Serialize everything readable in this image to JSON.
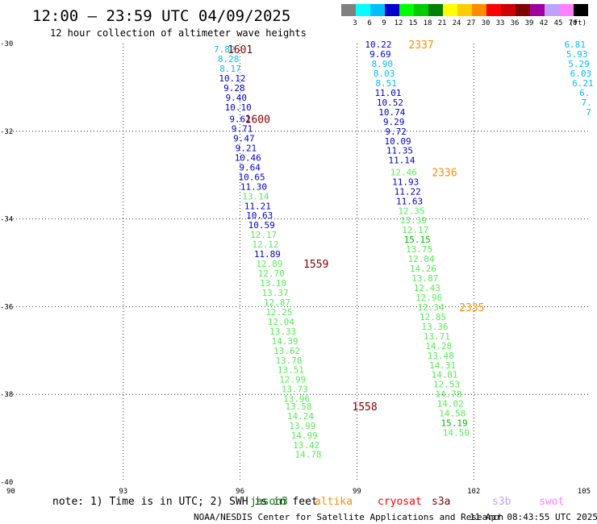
{
  "header": {
    "title": "12:00 — 23:59 UTC 04/09/2025",
    "subtitle": "12 hour collection of altimeter wave heights"
  },
  "legend": {
    "unit": "(ft)",
    "swatches": [
      {
        "label": "3",
        "color": "#808080"
      },
      {
        "label": "6",
        "color": "#00ffff"
      },
      {
        "label": "9",
        "color": "#00bfff"
      },
      {
        "label": "12",
        "color": "#0000cc"
      },
      {
        "label": "15",
        "color": "#00ff00"
      },
      {
        "label": "18",
        "color": "#00cc00"
      },
      {
        "label": "21",
        "color": "#008000"
      },
      {
        "label": "24",
        "color": "#ffff00"
      },
      {
        "label": "27",
        "color": "#ffcc00"
      },
      {
        "label": "30",
        "color": "#ff8c00"
      },
      {
        "label": "33",
        "color": "#ff0000"
      },
      {
        "label": "36",
        "color": "#cc0000"
      },
      {
        "label": "39",
        "color": "#800000"
      },
      {
        "label": "42",
        "color": "#a000a0"
      },
      {
        "label": "45",
        "color": "#c0a0ff"
      },
      {
        "label": "70",
        "color": "#ff80ff"
      },
      {
        "label": "",
        "color": "#000000"
      }
    ]
  },
  "axes": {
    "lon_ticks": [
      "90",
      "93",
      "96",
      "99",
      "102",
      "105"
    ],
    "lat_ticks": [
      "-30",
      "-32",
      "-34",
      "-36",
      "-38",
      "-40"
    ],
    "lon_range": [
      90,
      105
    ],
    "lat_range": [
      -30,
      -40
    ]
  },
  "colors": {
    "c6": "#00bfff",
    "c9": "#0000cc",
    "c12": "#55ee55",
    "c15": "#00bb00",
    "time_altika": "#ff8c00",
    "time_s3a": "#800000"
  },
  "tracks": [
    {
      "points": [
        {
          "lon": 95.6,
          "lat": -30.13,
          "v": "7.82",
          "c": "c6"
        },
        {
          "lon": 95.7,
          "lat": -30.35,
          "v": "8.28",
          "c": "c6"
        },
        {
          "lon": 95.75,
          "lat": -30.57,
          "v": "8.17",
          "c": "c6"
        },
        {
          "lon": 95.8,
          "lat": -30.79,
          "v": "10.12",
          "c": "c9"
        },
        {
          "lon": 95.85,
          "lat": -31.01,
          "v": "9.28",
          "c": "c9"
        },
        {
          "lon": 95.9,
          "lat": -31.23,
          "v": "9.40",
          "c": "c9"
        },
        {
          "lon": 95.95,
          "lat": -31.45,
          "v": "10.10",
          "c": "c9"
        },
        {
          "lon": 96.0,
          "lat": -31.72,
          "v": "9.62",
          "c": "c9"
        },
        {
          "lon": 96.05,
          "lat": -31.94,
          "v": "9.71",
          "c": "c9"
        },
        {
          "lon": 96.1,
          "lat": -32.16,
          "v": "9.47",
          "c": "c9"
        },
        {
          "lon": 96.15,
          "lat": -32.38,
          "v": "9.21",
          "c": "c9"
        },
        {
          "lon": 96.2,
          "lat": -32.6,
          "v": "10.46",
          "c": "c9"
        },
        {
          "lon": 96.25,
          "lat": -32.82,
          "v": "9.64",
          "c": "c9"
        },
        {
          "lon": 96.3,
          "lat": -33.04,
          "v": "10.65",
          "c": "c9"
        },
        {
          "lon": 96.35,
          "lat": -33.26,
          "v": "11.30",
          "c": "c9"
        },
        {
          "lon": 96.4,
          "lat": -33.48,
          "v": "13.14",
          "c": "c12"
        },
        {
          "lon": 96.45,
          "lat": -33.7,
          "v": "11.21",
          "c": "c9"
        },
        {
          "lon": 96.5,
          "lat": -33.92,
          "v": "10.63",
          "c": "c9"
        },
        {
          "lon": 96.55,
          "lat": -34.14,
          "v": "10.59",
          "c": "c9"
        },
        {
          "lon": 96.6,
          "lat": -34.36,
          "v": "12.17",
          "c": "c12"
        },
        {
          "lon": 96.65,
          "lat": -34.58,
          "v": "12.12",
          "c": "c12"
        },
        {
          "lon": 96.7,
          "lat": -34.8,
          "v": "11.89",
          "c": "c9"
        },
        {
          "lon": 96.75,
          "lat": -35.02,
          "v": "12.89",
          "c": "c12"
        },
        {
          "lon": 96.8,
          "lat": -35.24,
          "v": "12.70",
          "c": "c12"
        },
        {
          "lon": 96.85,
          "lat": -35.46,
          "v": "13.10",
          "c": "c12"
        },
        {
          "lon": 96.9,
          "lat": -35.68,
          "v": "13.37",
          "c": "c12"
        },
        {
          "lon": 96.95,
          "lat": -35.9,
          "v": "12.87",
          "c": "c12"
        },
        {
          "lon": 97.0,
          "lat": -36.12,
          "v": "12.25",
          "c": "c12"
        },
        {
          "lon": 97.05,
          "lat": -36.34,
          "v": "12.04",
          "c": "c12"
        },
        {
          "lon": 97.1,
          "lat": -36.56,
          "v": "13.33",
          "c": "c12"
        },
        {
          "lon": 97.15,
          "lat": -36.78,
          "v": "14.39",
          "c": "c12"
        },
        {
          "lon": 97.2,
          "lat": -37.0,
          "v": "13.62",
          "c": "c12"
        },
        {
          "lon": 97.25,
          "lat": -37.22,
          "v": "13.78",
          "c": "c12"
        },
        {
          "lon": 97.3,
          "lat": -37.44,
          "v": "13.51",
          "c": "c12"
        },
        {
          "lon": 97.35,
          "lat": -37.66,
          "v": "12.99",
          "c": "c12"
        },
        {
          "lon": 97.4,
          "lat": -37.88,
          "v": "13.73",
          "c": "c12"
        },
        {
          "lon": 97.45,
          "lat": -38.1,
          "v": "13.96",
          "c": "c12"
        },
        {
          "lon": 97.5,
          "lat": -38.27,
          "v": "13.58",
          "c": "c12"
        },
        {
          "lon": 97.55,
          "lat": -38.49,
          "v": "14.24",
          "c": "c12"
        },
        {
          "lon": 97.6,
          "lat": -38.71,
          "v": "13.99",
          "c": "c12"
        },
        {
          "lon": 97.65,
          "lat": -38.93,
          "v": "14.99",
          "c": "c12"
        },
        {
          "lon": 97.7,
          "lat": -39.15,
          "v": "13.42",
          "c": "c12"
        },
        {
          "lon": 97.75,
          "lat": -39.37,
          "v": "14.78",
          "c": "c12"
        }
      ]
    },
    {
      "points": [
        {
          "lon": 99.55,
          "lat": -30.02,
          "v": "10.22",
          "c": "c9"
        },
        {
          "lon": 99.6,
          "lat": -30.24,
          "v": "9.69",
          "c": "c9"
        },
        {
          "lon": 99.65,
          "lat": -30.46,
          "v": "8.90",
          "c": "c6"
        },
        {
          "lon": 99.7,
          "lat": -30.68,
          "v": "8.03",
          "c": "c6"
        },
        {
          "lon": 99.75,
          "lat": -30.9,
          "v": "8.51",
          "c": "c6"
        },
        {
          "lon": 99.8,
          "lat": -31.12,
          "v": "11.01",
          "c": "c9"
        },
        {
          "lon": 99.85,
          "lat": -31.34,
          "v": "10.52",
          "c": "c9"
        },
        {
          "lon": 99.9,
          "lat": -31.56,
          "v": "10.74",
          "c": "c9"
        },
        {
          "lon": 99.95,
          "lat": -31.78,
          "v": "9.29",
          "c": "c9"
        },
        {
          "lon": 100.0,
          "lat": -32.0,
          "v": "9.72",
          "c": "c9"
        },
        {
          "lon": 100.05,
          "lat": -32.22,
          "v": "10.09",
          "c": "c9"
        },
        {
          "lon": 100.1,
          "lat": -32.44,
          "v": "11.35",
          "c": "c9"
        },
        {
          "lon": 100.15,
          "lat": -32.66,
          "v": "11.14",
          "c": "c9"
        },
        {
          "lon": 100.2,
          "lat": -32.93,
          "v": "12.46",
          "c": "c12"
        },
        {
          "lon": 100.25,
          "lat": -33.15,
          "v": "11.93",
          "c": "c9"
        },
        {
          "lon": 100.3,
          "lat": -33.37,
          "v": "11.22",
          "c": "c9"
        },
        {
          "lon": 100.35,
          "lat": -33.59,
          "v": "11.63",
          "c": "c9"
        },
        {
          "lon": 100.4,
          "lat": -33.81,
          "v": "12.35",
          "c": "c12"
        },
        {
          "lon": 100.45,
          "lat": -34.03,
          "v": "13.39",
          "c": "c12"
        },
        {
          "lon": 100.5,
          "lat": -34.25,
          "v": "12.17",
          "c": "c12"
        },
        {
          "lon": 100.55,
          "lat": -34.47,
          "v": "15.15",
          "c": "c15"
        },
        {
          "lon": 100.6,
          "lat": -34.69,
          "v": "13.75",
          "c": "c12"
        },
        {
          "lon": 100.65,
          "lat": -34.91,
          "v": "12.04",
          "c": "c12"
        },
        {
          "lon": 100.7,
          "lat": -35.13,
          "v": "14.26",
          "c": "c12"
        },
        {
          "lon": 100.75,
          "lat": -35.35,
          "v": "13.87",
          "c": "c12"
        },
        {
          "lon": 100.8,
          "lat": -35.57,
          "v": "12.43",
          "c": "c12"
        },
        {
          "lon": 100.85,
          "lat": -35.79,
          "v": "12.96",
          "c": "c12"
        },
        {
          "lon": 100.9,
          "lat": -36.01,
          "v": "12.34",
          "c": "c12"
        },
        {
          "lon": 100.95,
          "lat": -36.23,
          "v": "12.85",
          "c": "c12"
        },
        {
          "lon": 101.0,
          "lat": -36.45,
          "v": "13.36",
          "c": "c12"
        },
        {
          "lon": 101.05,
          "lat": -36.67,
          "v": "13.71",
          "c": "c12"
        },
        {
          "lon": 101.1,
          "lat": -36.89,
          "v": "14.28",
          "c": "c12"
        },
        {
          "lon": 101.15,
          "lat": -37.11,
          "v": "13.48",
          "c": "c12"
        },
        {
          "lon": 101.2,
          "lat": -37.33,
          "v": "14.31",
          "c": "c12"
        },
        {
          "lon": 101.25,
          "lat": -37.55,
          "v": "14.81",
          "c": "c12"
        },
        {
          "lon": 101.3,
          "lat": -37.77,
          "v": "12.53",
          "c": "c12"
        },
        {
          "lon": 101.35,
          "lat": -37.99,
          "v": "14.78",
          "c": "c12"
        },
        {
          "lon": 101.4,
          "lat": -38.21,
          "v": "14.02",
          "c": "c12"
        },
        {
          "lon": 101.45,
          "lat": -38.43,
          "v": "14.58",
          "c": "c12"
        },
        {
          "lon": 101.5,
          "lat": -38.65,
          "v": "15.19",
          "c": "c15"
        },
        {
          "lon": 101.55,
          "lat": -38.87,
          "v": "14.50",
          "c": "c12"
        }
      ]
    },
    {
      "points": [
        {
          "lon": 104.6,
          "lat": -30.02,
          "v": "6.81",
          "c": "c6"
        },
        {
          "lon": 104.65,
          "lat": -30.24,
          "v": "5.93",
          "c": "c6"
        },
        {
          "lon": 104.7,
          "lat": -30.46,
          "v": "5.29",
          "c": "c6"
        },
        {
          "lon": 104.75,
          "lat": -30.68,
          "v": "6.03",
          "c": "c6"
        },
        {
          "lon": 104.8,
          "lat": -30.9,
          "v": "6.21",
          "c": "c6"
        },
        {
          "lon": 104.85,
          "lat": -31.12,
          "v": "6.",
          "c": "c6"
        },
        {
          "lon": 104.9,
          "lat": -31.34,
          "v": "7.",
          "c": "c6"
        },
        {
          "lon": 104.95,
          "lat": -31.56,
          "v": "7",
          "c": "c6"
        }
      ]
    }
  ],
  "time_labels": [
    {
      "lon": 96.0,
      "lat": -30.13,
      "text": "1601",
      "c": "time_s3a"
    },
    {
      "lon": 96.45,
      "lat": -31.72,
      "text": "1600",
      "c": "time_s3a"
    },
    {
      "lon": 97.95,
      "lat": -35.02,
      "text": "1559",
      "c": "time_s3a"
    },
    {
      "lon": 99.2,
      "lat": -38.27,
      "text": "1558",
      "c": "time_s3a"
    },
    {
      "lon": 100.65,
      "lat": -30.02,
      "text": "2337",
      "c": "time_altika"
    },
    {
      "lon": 101.25,
      "lat": -32.93,
      "text": "2336",
      "c": "time_altika"
    },
    {
      "lon": 101.95,
      "lat": -36.01,
      "text": "2335",
      "c": "time_altika"
    }
  ],
  "footer": {
    "note": "note: 1) Time is in UTC; 2) SWH is in feet",
    "satellites": [
      {
        "name": "jason3",
        "color": "#008000"
      },
      {
        "name": "altika",
        "color": "#ff8c00"
      },
      {
        "name": "cryosat",
        "color": "#ff0000"
      },
      {
        "name": "s3a",
        "color": "#800000"
      },
      {
        "name": "s3b",
        "color": "#c0a0ff"
      },
      {
        "name": "swot",
        "color": "#ff80ff"
      }
    ],
    "credit": "NOAA/NESDIS Center for Satellite Applications and Research",
    "timestamp": "11 Apr 08:43:55 UTC 2025"
  }
}
